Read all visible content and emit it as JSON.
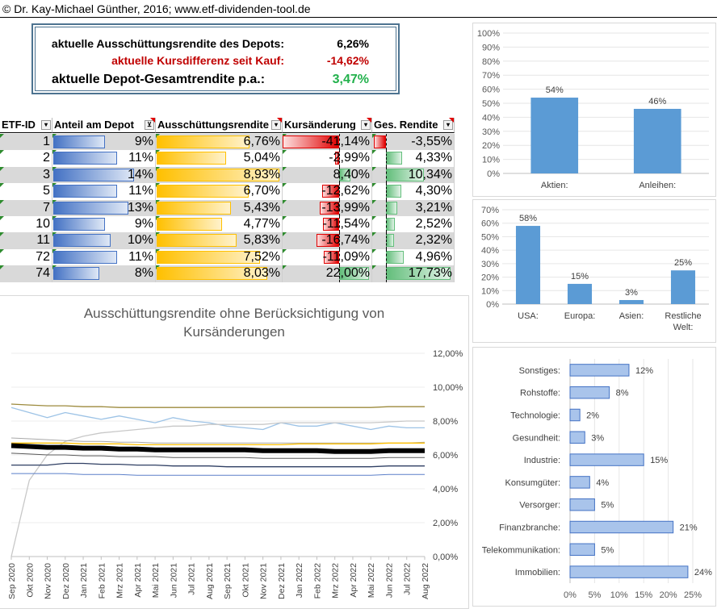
{
  "header": {
    "copyright": "© Dr. Kay-Michael Günther, 2016; www.etf-dividenden-tool.de"
  },
  "summary": {
    "yield_label": "aktuelle Ausschüttungsrendite des Depots:",
    "yield_value": "6,26%",
    "price_label": "aktuelle Kursdifferenz seit Kauf:",
    "price_value": "-14,62%",
    "total_label": "aktuelle Depot-Gesamtrendite p.a.:",
    "total_value": "3,47%"
  },
  "colors": {
    "blue_bar": "#4472c4",
    "orange_bar": "#ffc000",
    "red_bar": "#e00000",
    "green_bar": "#63be7b",
    "chart_bar": "#5b9bd5"
  },
  "table": {
    "headers": [
      "ETF-ID",
      "Anteil am Depot",
      "Ausschüttungsrendite",
      "Kursänderung",
      "Ges. Rendite"
    ],
    "rows": [
      {
        "id": "1",
        "share": "9%",
        "yield": "6,76%",
        "change": "-41,14%",
        "total": "-3,55%",
        "s": 9,
        "y": 6.76,
        "c": -41.14,
        "t": -3.55
      },
      {
        "id": "2",
        "share": "11%",
        "yield": "5,04%",
        "change": "-2,99%",
        "total": "4,33%",
        "s": 11,
        "y": 5.04,
        "c": -2.99,
        "t": 4.33
      },
      {
        "id": "3",
        "share": "14%",
        "yield": "8,93%",
        "change": "8,40%",
        "total": "10,34%",
        "s": 14,
        "y": 8.93,
        "c": 8.4,
        "t": 10.34
      },
      {
        "id": "5",
        "share": "11%",
        "yield": "6,70%",
        "change": "-12,62%",
        "total": "4,30%",
        "s": 11,
        "y": 6.7,
        "c": -12.62,
        "t": 4.3
      },
      {
        "id": "7",
        "share": "13%",
        "yield": "5,43%",
        "change": "-13,99%",
        "total": "3,21%",
        "s": 13,
        "y": 5.43,
        "c": -13.99,
        "t": 3.21
      },
      {
        "id": "10",
        "share": "9%",
        "yield": "4,77%",
        "change": "-11,54%",
        "total": "2,52%",
        "s": 9,
        "y": 4.77,
        "c": -11.54,
        "t": 2.52
      },
      {
        "id": "11",
        "share": "10%",
        "yield": "5,83%",
        "change": "-16,74%",
        "total": "2,32%",
        "s": 10,
        "y": 5.83,
        "c": -16.74,
        "t": 2.32
      },
      {
        "id": "72",
        "share": "11%",
        "yield": "7,52%",
        "change": "-11,09%",
        "total": "4,96%",
        "s": 11,
        "y": 7.52,
        "c": -11.09,
        "t": 4.96
      },
      {
        "id": "74",
        "share": "8%",
        "yield": "8,03%",
        "change": "22,00%",
        "total": "17,73%",
        "s": 8,
        "y": 8.03,
        "c": 22.0,
        "t": 17.73
      }
    ]
  },
  "chart_data": [
    {
      "type": "bar",
      "categories": [
        "Aktien:",
        "Anleihen:"
      ],
      "values": [
        54,
        46
      ],
      "data_labels": [
        "54%",
        "46%"
      ],
      "ylim": [
        0,
        100
      ],
      "yticks": [
        "0%",
        "10%",
        "20%",
        "30%",
        "40%",
        "50%",
        "60%",
        "70%",
        "80%",
        "90%",
        "100%"
      ]
    },
    {
      "type": "bar",
      "categories": [
        "USA:",
        "Europa:",
        "Asien:",
        "Restliche Welt:"
      ],
      "values": [
        58,
        15,
        3,
        25
      ],
      "data_labels": [
        "58%",
        "15%",
        "3%",
        "25%"
      ],
      "ylim": [
        0,
        70
      ],
      "yticks": [
        "0%",
        "10%",
        "20%",
        "30%",
        "40%",
        "50%",
        "60%",
        "70%"
      ]
    },
    {
      "type": "bar",
      "orientation": "horizontal",
      "categories": [
        "Sonstiges:",
        "Rohstoffe:",
        "Technologie:",
        "Gesundheit:",
        "Industrie:",
        "Konsumgüter:",
        "Versorger:",
        "Finanzbranche:",
        "Telekommunikation:",
        "Immobilien:"
      ],
      "values": [
        12,
        8,
        2,
        3,
        15,
        4,
        5,
        21,
        5,
        24
      ],
      "data_labels": [
        "12%",
        "8%",
        "2%",
        "3%",
        "15%",
        "4%",
        "5%",
        "21%",
        "5%",
        "24%"
      ],
      "xlim": [
        0,
        25
      ],
      "xticks": [
        "0%",
        "5%",
        "10%",
        "15%",
        "20%",
        "25%"
      ]
    },
    {
      "type": "line",
      "title": "Ausschüttungsrendite ohne Berücksichtigung von Kursänderungen",
      "x": [
        "Sep 2020",
        "Okt 2020",
        "Nov 2020",
        "Dez 2020",
        "Jan 2021",
        "Feb 2021",
        "Mrz 2021",
        "Apr 2021",
        "Mai 2021",
        "Jun 2021",
        "Jul 2021",
        "Aug 2021",
        "Sep 2021",
        "Okt 2021",
        "Nov 2021",
        "Dez 2021",
        "Jan 2022",
        "Feb 2022",
        "Mrz 2022",
        "Apr 2022",
        "Mai 2022",
        "Jun 2022",
        "Jul 2022",
        "Aug 2022"
      ],
      "ylim": [
        0,
        12
      ],
      "yticks": [
        "0,00%",
        "2,00%",
        "4,00%",
        "6,00%",
        "8,00%",
        "10,00%",
        "12,00%"
      ],
      "series": [
        {
          "color": "#9c8a3c",
          "width": 1.3,
          "values": [
            9.0,
            8.95,
            8.9,
            8.9,
            8.85,
            8.85,
            8.8,
            8.8,
            8.8,
            8.8,
            8.8,
            8.8,
            8.8,
            8.8,
            8.8,
            8.8,
            8.8,
            8.8,
            8.8,
            8.8,
            8.8,
            8.85,
            8.85,
            8.85
          ]
        },
        {
          "color": "#9dc3e6",
          "width": 1.3,
          "values": [
            8.8,
            8.5,
            8.2,
            8.5,
            8.3,
            8.1,
            8.3,
            8.1,
            7.9,
            8.2,
            8.0,
            7.9,
            7.7,
            7.6,
            7.5,
            7.9,
            7.7,
            7.7,
            7.9,
            7.7,
            7.5,
            7.7,
            7.6,
            7.6
          ]
        },
        {
          "color": "#c8c8c8",
          "width": 1.3,
          "values": [
            0.0,
            4.5,
            6.0,
            6.8,
            7.1,
            7.3,
            7.4,
            7.5,
            7.6,
            7.7,
            7.7,
            7.8,
            7.8,
            7.8,
            7.8,
            7.9,
            7.9,
            7.9,
            7.9,
            7.9,
            7.9,
            7.95,
            8.0,
            8.0
          ]
        },
        {
          "color": "#a9a9a9",
          "width": 1.0,
          "values": [
            7.0,
            6.95,
            6.9,
            6.85,
            6.8,
            6.8,
            6.75,
            6.75,
            6.7,
            6.7,
            6.7,
            6.7,
            6.7,
            6.7,
            6.7,
            6.7,
            6.7,
            6.7,
            6.7,
            6.7,
            6.7,
            6.7,
            6.7,
            6.75
          ]
        },
        {
          "color": "#ffc000",
          "width": 1.3,
          "values": [
            6.7,
            6.7,
            6.7,
            6.7,
            6.65,
            6.65,
            6.65,
            6.6,
            6.6,
            6.6,
            6.6,
            6.6,
            6.6,
            6.6,
            6.6,
            6.6,
            6.65,
            6.65,
            6.65,
            6.65,
            6.65,
            6.7,
            6.7,
            6.7
          ]
        },
        {
          "color": "#000000",
          "width": 6.0,
          "values": [
            6.55,
            6.5,
            6.45,
            6.45,
            6.4,
            6.4,
            6.35,
            6.35,
            6.3,
            6.3,
            6.3,
            6.3,
            6.3,
            6.3,
            6.25,
            6.25,
            6.25,
            6.25,
            6.2,
            6.2,
            6.2,
            6.25,
            6.25,
            6.25
          ]
        },
        {
          "color": "#5a5a5a",
          "width": 1.0,
          "values": [
            6.1,
            6.05,
            6.0,
            6.0,
            5.95,
            5.95,
            5.9,
            5.9,
            5.9,
            5.85,
            5.85,
            5.85,
            5.85,
            5.85,
            5.8,
            5.8,
            5.8,
            5.8,
            5.8,
            5.8,
            5.8,
            5.85,
            5.85,
            5.85
          ]
        },
        {
          "color": "#2f3f63",
          "width": 1.3,
          "values": [
            5.4,
            5.4,
            5.4,
            5.5,
            5.5,
            5.45,
            5.45,
            5.4,
            5.4,
            5.35,
            5.35,
            5.35,
            5.3,
            5.3,
            5.3,
            5.3,
            5.3,
            5.3,
            5.3,
            5.3,
            5.3,
            5.35,
            5.35,
            5.35
          ]
        },
        {
          "color": "#5b7fc9",
          "width": 1.0,
          "values": [
            4.9,
            4.9,
            4.9,
            4.9,
            4.85,
            4.85,
            4.85,
            4.8,
            4.8,
            4.8,
            4.8,
            4.8,
            4.8,
            4.8,
            4.8,
            4.8,
            4.8,
            4.8,
            4.8,
            4.8,
            4.8,
            4.85,
            4.85,
            4.85
          ]
        }
      ]
    }
  ]
}
